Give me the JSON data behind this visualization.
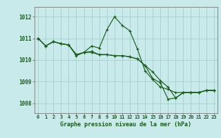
{
  "title": "Graphe pression niveau de la mer (hPa)",
  "background_color": "#c8eaea",
  "grid_color": "#a0c8c8",
  "line_color": "#1a5c1a",
  "title_bg_color": "#c8eaea",
  "title_color": "#1a5c1a",
  "x_ticks": [
    0,
    1,
    2,
    3,
    4,
    5,
    6,
    7,
    8,
    9,
    10,
    11,
    12,
    13,
    14,
    15,
    16,
    17,
    18,
    19,
    20,
    21,
    22,
    23
  ],
  "y_ticks": [
    1008,
    1009,
    1010,
    1011,
    1012
  ],
  "ylim": [
    1007.55,
    1012.45
  ],
  "xlim": [
    -0.5,
    23.5
  ],
  "series": [
    [
      1011.0,
      1010.65,
      1010.85,
      1010.75,
      1010.7,
      1010.2,
      1010.35,
      1010.65,
      1010.55,
      1011.4,
      1012.0,
      1011.6,
      1011.35,
      1010.5,
      1009.5,
      1009.1,
      1008.75,
      1008.65,
      1008.5,
      1008.5,
      1008.5,
      1008.5,
      1008.6,
      1008.6
    ],
    [
      1011.0,
      1010.65,
      1010.85,
      1010.75,
      1010.7,
      1010.25,
      1010.35,
      1010.35,
      1010.25,
      1010.25,
      1010.2,
      1010.2,
      1010.15,
      1010.05,
      1009.75,
      1009.15,
      1008.95,
      1008.2,
      1008.25,
      1008.5,
      1008.5,
      1008.5,
      1008.6,
      1008.6
    ],
    [
      1011.0,
      1010.65,
      1010.85,
      1010.75,
      1010.7,
      1010.25,
      1010.35,
      1010.4,
      1010.25,
      1010.25,
      1010.2,
      1010.2,
      1010.15,
      1010.05,
      1009.75,
      1009.45,
      1009.05,
      1008.75,
      1008.25,
      1008.5,
      1008.5,
      1008.5,
      1008.6,
      1008.6
    ]
  ]
}
